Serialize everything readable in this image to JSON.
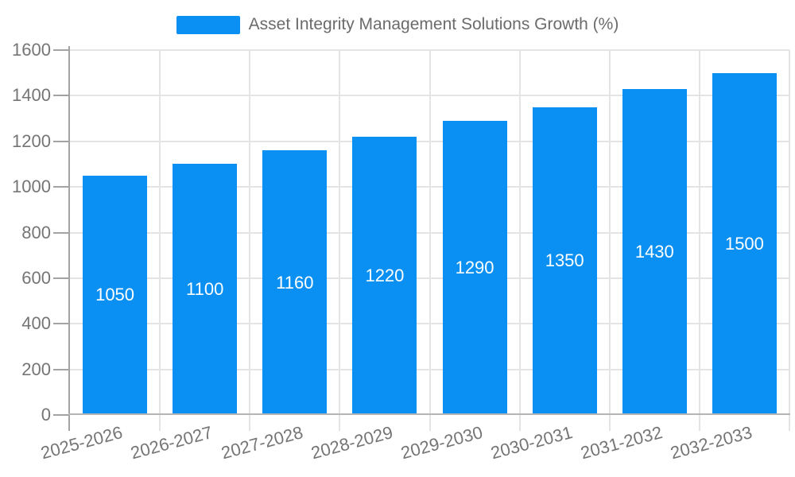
{
  "chart_data": {
    "type": "bar",
    "title": "Asset Integrity Management Solutions Growth (%)",
    "legend_entries": [
      "Asset Integrity Management Solutions Growth (%)"
    ],
    "legend_position": "top-center",
    "categories": [
      "2025-2026",
      "2026-2027",
      "2027-2028",
      "2028-2029",
      "2029-2030",
      "2030-2031",
      "2031-2032",
      "2032-2033"
    ],
    "series": [
      {
        "name": "Asset Integrity Management Solutions Growth (%)",
        "values": [
          1050,
          1100,
          1160,
          1220,
          1290,
          1350,
          1430,
          1500
        ]
      }
    ],
    "bar_value_labels": [
      "1050",
      "1100",
      "1160",
      "1220",
      "1290",
      "1350",
      "1430",
      "1500"
    ],
    "bar_label_position": "inside-center",
    "xlabel": "",
    "ylabel": "",
    "ylim": [
      0,
      1600
    ],
    "yticks": [
      0,
      200,
      400,
      600,
      800,
      1000,
      1200,
      1400,
      1600
    ],
    "grid": true,
    "x_tick_label_rotation_deg": -15,
    "colors": {
      "bar": "#0a90f2",
      "grid_line": "#e4e4e4",
      "axis_line": "#a3a3a3",
      "tick_text": "#757575",
      "legend_text": "#6b6b6b",
      "bar_label_text": "#ffffff",
      "background": "#ffffff"
    }
  }
}
